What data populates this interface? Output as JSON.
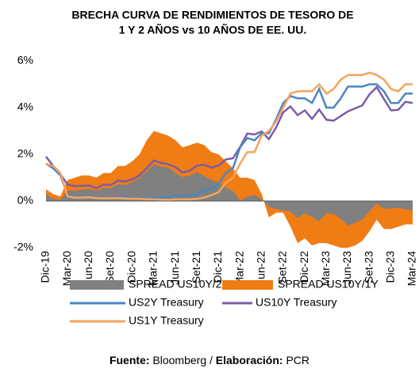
{
  "chart_data": {
    "type": "area-line",
    "title_lines": [
      "BRECHA CURVA DE RENDIMIENTOS DE TESORO DE",
      "1 Y 2 AÑOS vs 10 AÑOS DE EE. UU."
    ],
    "source": [
      "Fuente:",
      " Bloomberg / ",
      "Elaboración:",
      " PCR"
    ],
    "categories": [
      "Dic-19",
      null,
      null,
      "Mar-20",
      null,
      null,
      "Jun-20",
      null,
      null,
      "Set-20",
      null,
      null,
      "Dic-20",
      null,
      null,
      "Mar-21",
      null,
      null,
      "Jun-21",
      null,
      null,
      "Set-21",
      null,
      null,
      "Dic-21",
      null,
      null,
      "Mar-22",
      null,
      null,
      "Jun-22",
      null,
      null,
      "Set-22",
      null,
      null,
      "Dic-22",
      null,
      null,
      "Mar-23",
      null,
      null,
      "Jun-23",
      null,
      null,
      "Set-23",
      null,
      null,
      "Dic-23",
      null,
      null,
      "Mar-24"
    ],
    "ylim": [
      -2,
      6
    ],
    "yticks": [
      {
        "value": -2,
        "label": "-2%"
      },
      {
        "value": 0,
        "label": "0%"
      },
      {
        "value": 2,
        "label": "2%"
      },
      {
        "value": 4,
        "label": "4%"
      },
      {
        "value": 6,
        "label": "6%"
      }
    ],
    "series": [
      {
        "name": "SPREAD US10Y/2Y",
        "kind": "area",
        "color": "#808080",
        "values": [
          0.3,
          0.1,
          0.05,
          0.45,
          0.44,
          0.49,
          0.51,
          0.44,
          0.56,
          0.55,
          0.72,
          0.68,
          0.81,
          0.99,
          1.27,
          1.58,
          1.47,
          1.43,
          1.2,
          1.03,
          1.09,
          1.24,
          1.07,
          0.91,
          0.79,
          0.58,
          0.43,
          0.02,
          0.19,
          0.25,
          0.08,
          -0.25,
          -0.35,
          -0.4,
          -0.45,
          -0.72,
          -0.52,
          -0.68,
          -0.88,
          -0.52,
          -0.56,
          -0.76,
          -1.06,
          -0.93,
          -0.8,
          -0.43,
          -0.12,
          -0.33,
          -0.32,
          -0.29,
          -0.35,
          -0.4
        ]
      },
      {
        "name": "SPREAD US10Y/1Y",
        "kind": "area",
        "color": "#f07c14",
        "values": [
          0.5,
          0.3,
          0.2,
          0.9,
          1.0,
          1.1,
          1.1,
          1.0,
          1.2,
          1.2,
          1.5,
          1.5,
          1.7,
          2.0,
          2.6,
          3.0,
          2.9,
          2.8,
          2.6,
          2.3,
          2.4,
          2.5,
          2.4,
          2.1,
          2.0,
          1.7,
          1.4,
          1.0,
          1.0,
          0.9,
          0.3,
          -0.7,
          -0.5,
          -0.5,
          -1.1,
          -1.8,
          -1.6,
          -1.9,
          -1.8,
          -1.8,
          -1.9,
          -2.0,
          -2.0,
          -1.9,
          -1.7,
          -1.3,
          -0.8,
          -1.2,
          -1.2,
          -1.1,
          -1.0,
          -1.0
        ]
      },
      {
        "name": "US2Y Treasury",
        "kind": "line",
        "color": "#4a86c5",
        "values": [
          1.6,
          1.4,
          1.1,
          0.25,
          0.2,
          0.16,
          0.15,
          0.11,
          0.14,
          0.13,
          0.15,
          0.16,
          0.12,
          0.11,
          0.13,
          0.16,
          0.16,
          0.15,
          0.25,
          0.19,
          0.21,
          0.28,
          0.48,
          0.52,
          0.73,
          1.2,
          1.4,
          2.3,
          2.7,
          2.6,
          2.9,
          2.9,
          3.5,
          4.2,
          4.5,
          4.4,
          4.4,
          4.2,
          4.8,
          4.0,
          4.0,
          4.4,
          4.9,
          4.9,
          4.9,
          5.0,
          5.0,
          4.7,
          4.2,
          4.2,
          4.6,
          4.6
        ]
      },
      {
        "name": "US10Y Treasury",
        "kind": "line",
        "color": "#7d5ca8",
        "values": [
          1.9,
          1.5,
          1.15,
          0.7,
          0.64,
          0.65,
          0.66,
          0.55,
          0.7,
          0.68,
          0.87,
          0.84,
          0.93,
          1.1,
          1.4,
          1.74,
          1.63,
          1.58,
          1.45,
          1.22,
          1.3,
          1.52,
          1.55,
          1.43,
          1.52,
          1.78,
          1.83,
          2.32,
          2.89,
          2.85,
          2.98,
          2.65,
          3.15,
          3.8,
          4.05,
          3.68,
          3.88,
          3.52,
          3.92,
          3.48,
          3.44,
          3.64,
          3.84,
          3.97,
          4.1,
          4.57,
          4.88,
          4.37,
          3.88,
          3.91,
          4.25,
          4.2
        ]
      },
      {
        "name": "US1Y Treasury",
        "kind": "line",
        "color": "#f7a35c",
        "values": [
          1.6,
          1.5,
          1.2,
          0.2,
          0.15,
          0.15,
          0.16,
          0.13,
          0.12,
          0.12,
          0.13,
          0.11,
          0.1,
          0.1,
          0.08,
          0.07,
          0.06,
          0.05,
          0.07,
          0.07,
          0.07,
          0.09,
          0.15,
          0.25,
          0.38,
          0.78,
          1.0,
          1.6,
          2.1,
          2.1,
          2.8,
          3.0,
          3.4,
          4.0,
          4.6,
          4.7,
          4.7,
          4.7,
          5.0,
          4.6,
          4.8,
          5.2,
          5.4,
          5.4,
          5.4,
          5.5,
          5.4,
          5.2,
          4.8,
          4.7,
          5.0,
          5.0
        ]
      }
    ]
  }
}
